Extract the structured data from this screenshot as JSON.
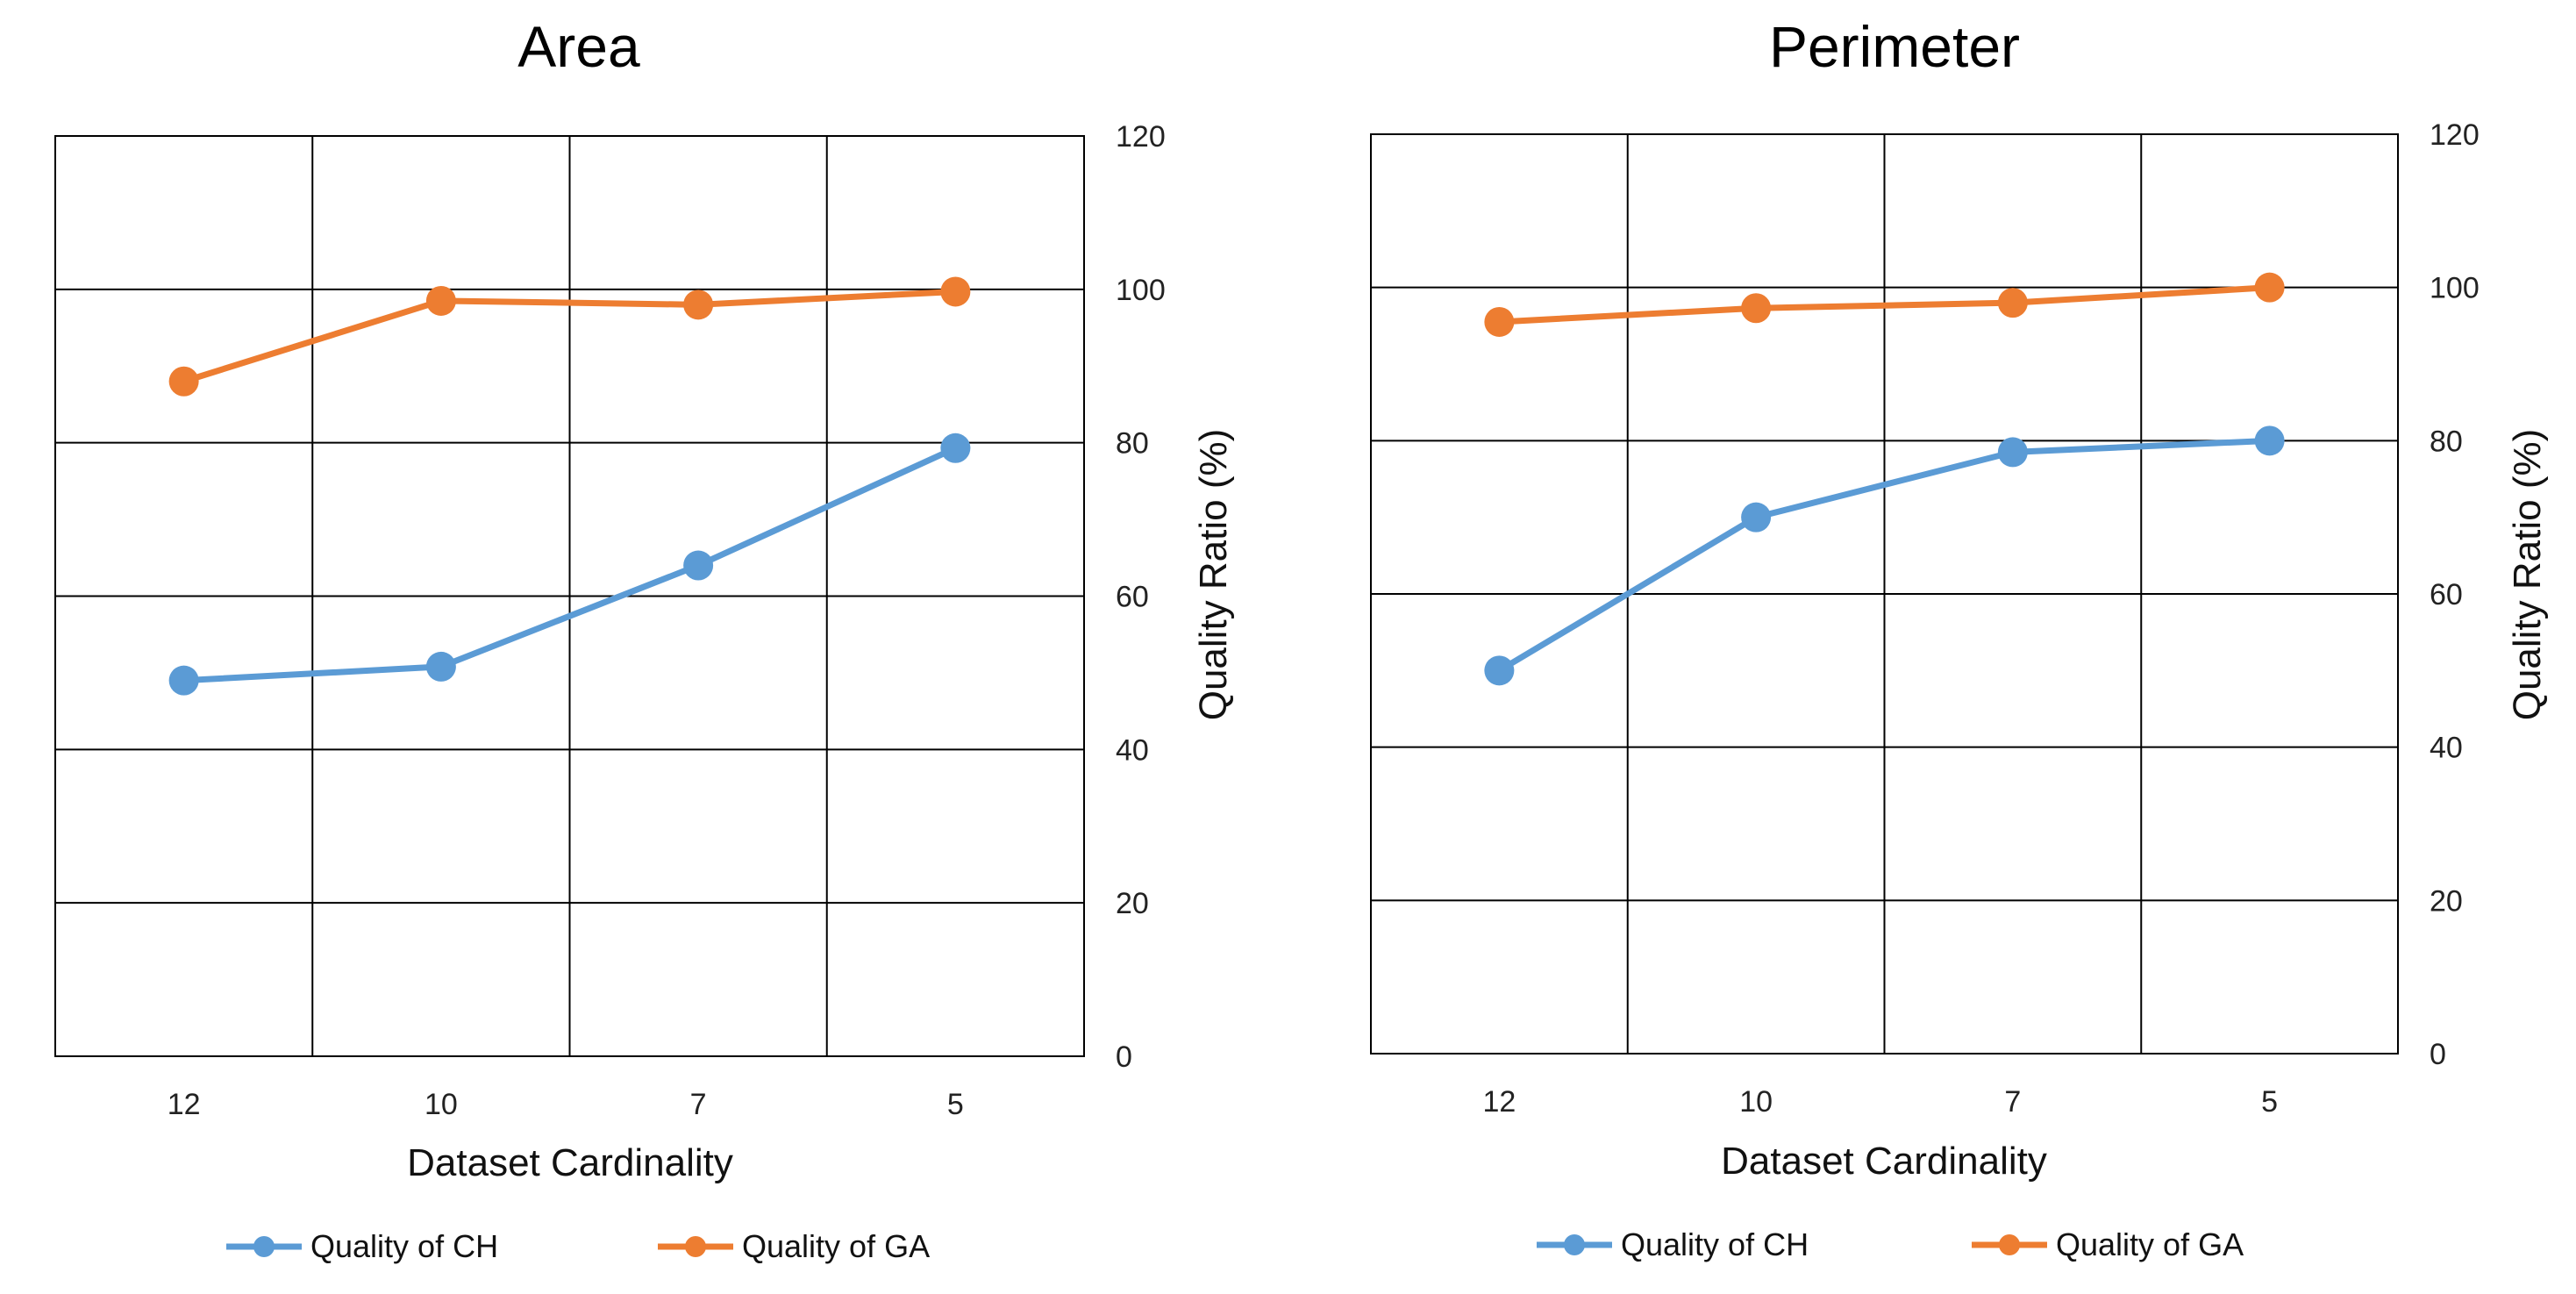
{
  "chart_data": [
    {
      "type": "line",
      "title": "Area",
      "categories": [
        "12",
        "10",
        "7",
        "5"
      ],
      "series": [
        {
          "name": "Quality of CH",
          "color": "#5B9BD5",
          "values": [
            49,
            50.8,
            64,
            79.3
          ]
        },
        {
          "name": "Quality of GA",
          "color": "#ED7D31",
          "values": [
            88,
            98.5,
            98,
            99.7
          ]
        }
      ],
      "xlabel": "Dataset Cardinality",
      "ylabel": "Quality Ratio (%)",
      "ylim": [
        0,
        120
      ],
      "yticks": [
        "0",
        "20",
        "40",
        "60",
        "80",
        "100",
        "120"
      ],
      "grid": true,
      "legend": "bottom"
    },
    {
      "type": "line",
      "title": "Perimeter",
      "categories": [
        "12",
        "10",
        "7",
        "5"
      ],
      "series": [
        {
          "name": "Quality of CH",
          "color": "#5B9BD5",
          "values": [
            50,
            70,
            78.5,
            80
          ]
        },
        {
          "name": "Quality of GA",
          "color": "#ED7D31",
          "values": [
            95.5,
            97.3,
            98,
            100
          ]
        }
      ],
      "xlabel": "Dataset Cardinality",
      "ylabel": "Quality Ratio (%)",
      "ylim": [
        0,
        120
      ],
      "yticks": [
        "0",
        "20",
        "40",
        "60",
        "80",
        "100",
        "120"
      ],
      "grid": true,
      "legend": "bottom"
    }
  ]
}
